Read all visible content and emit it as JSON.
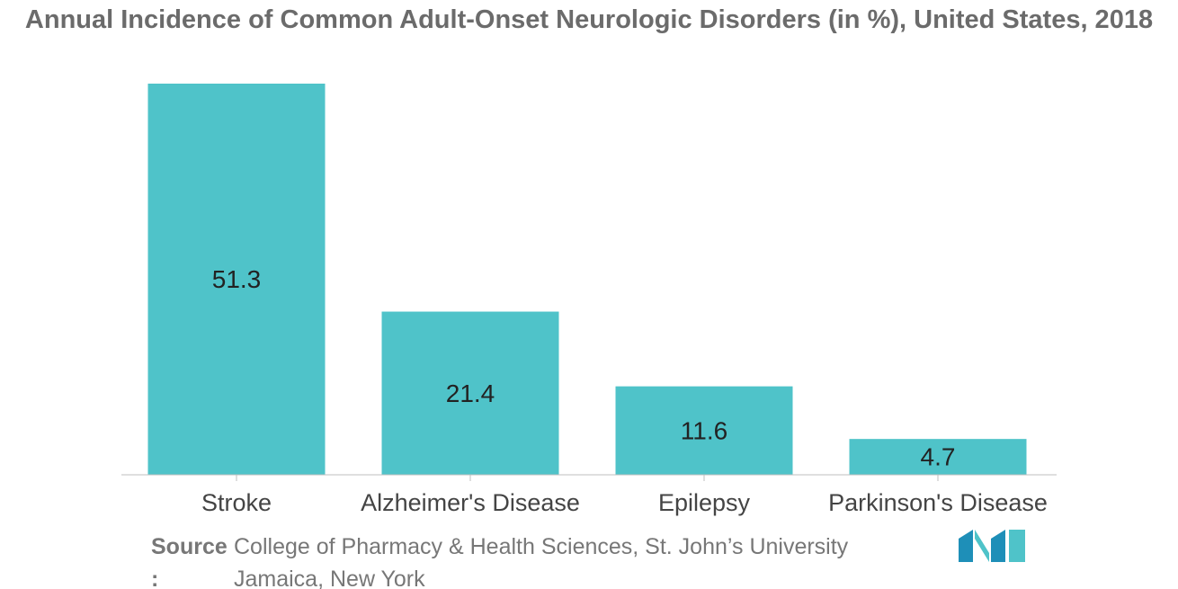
{
  "chart_data": {
    "type": "bar",
    "title": "Annual Incidence of Common Adult-Onset Neurologic Disorders (in %), United States, 2018",
    "categories": [
      "Stroke",
      "Alzheimer's Disease",
      "Epilepsy",
      "Parkinson's Disease"
    ],
    "values": [
      51.3,
      21.4,
      11.6,
      4.7
    ],
    "data_labels": [
      "51.3",
      "21.4",
      "11.6",
      "4.7"
    ],
    "ylim": [
      0,
      51.3
    ],
    "xlabel": "",
    "ylabel": "",
    "grid": false,
    "legend": "none",
    "bar_color": "#4fc3c9"
  },
  "source": {
    "label": "Source",
    "colon": ":",
    "text": "College of Pharmacy & Health Sciences, St. John’s University Jamaica, New York"
  },
  "logo": {
    "icon": "mordor-intelligence-logo-icon",
    "colors": [
      "#1e8fb8",
      "#4fc3c9"
    ]
  }
}
